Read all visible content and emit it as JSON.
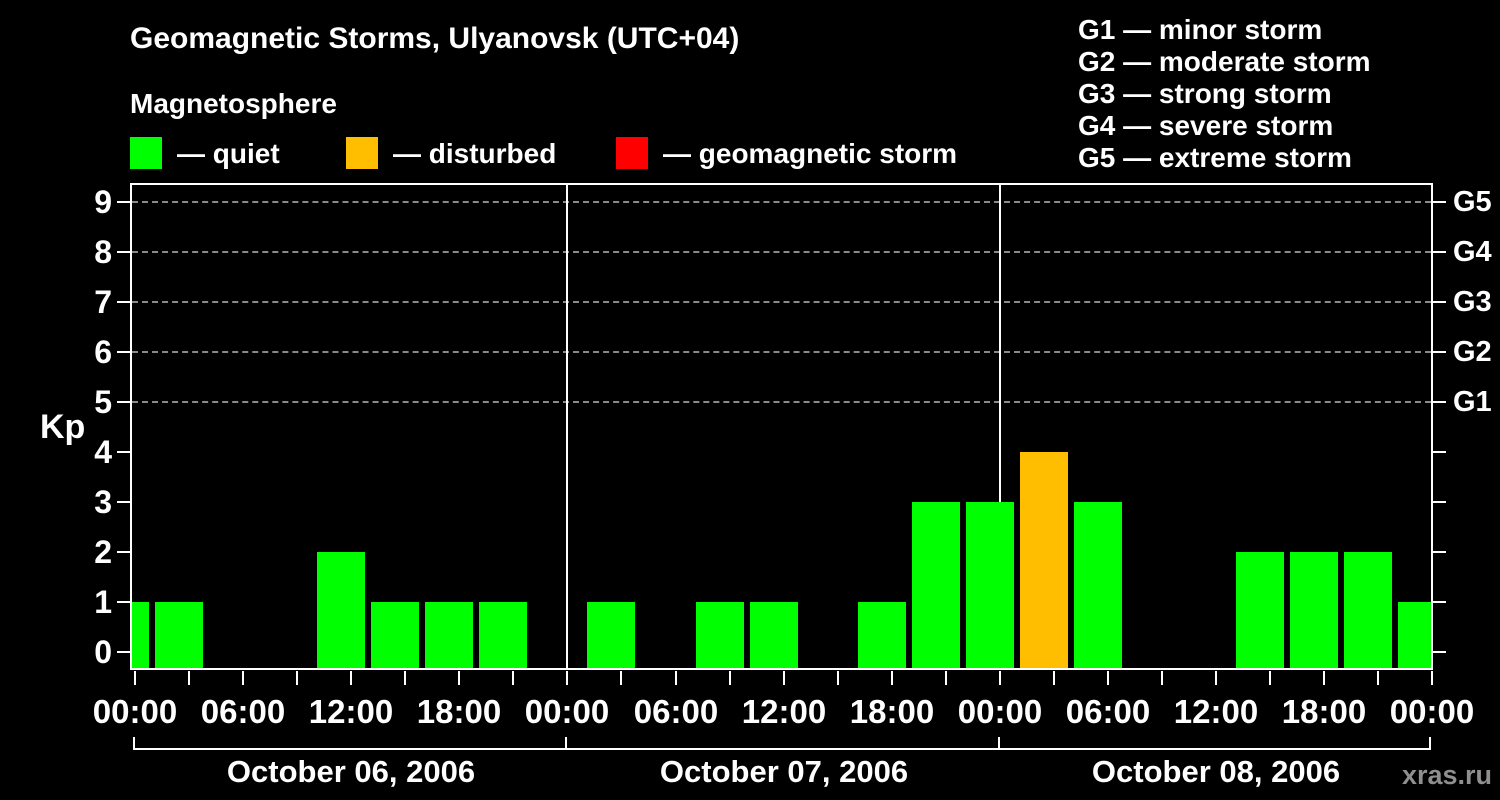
{
  "title": "Geomagnetic Storms, Ulyanovsk (UTC+04)",
  "subtitle": "Magnetosphere",
  "legend": {
    "items": [
      {
        "kind": "quiet",
        "label": "— quiet",
        "color": "#00ff00"
      },
      {
        "kind": "disturbed",
        "label": "— disturbed",
        "color": "#ffbe00"
      },
      {
        "kind": "storm",
        "label": "— geomagnetic storm",
        "color": "#ff0000"
      }
    ]
  },
  "g_legend": {
    "items": [
      "G1 — minor storm",
      "G2 — moderate storm",
      "G3 — strong storm",
      "G4 — severe storm",
      "G5 — extreme storm"
    ]
  },
  "watermark": "xras.ru",
  "chart_data": {
    "type": "bar",
    "title": "Geomagnetic Storms, Ulyanovsk (UTC+04)",
    "ylabel": "Kp",
    "ylim": [
      0,
      9
    ],
    "yticks": [
      0,
      1,
      2,
      3,
      4,
      5,
      6,
      7,
      8,
      9
    ],
    "gridlines_at_kp": [
      5,
      6,
      7,
      8,
      9
    ],
    "grid_style": "dashed",
    "right_axis": {
      "labels": [
        {
          "kp": 5,
          "text": "G1"
        },
        {
          "kp": 6,
          "text": "G2"
        },
        {
          "kp": 7,
          "text": "G3"
        },
        {
          "kp": 8,
          "text": "G4"
        },
        {
          "kp": 9,
          "text": "G5"
        }
      ]
    },
    "interval_hours": 3,
    "x_tick_labels": [
      "00:00",
      "06:00",
      "12:00",
      "18:00",
      "00:00",
      "06:00",
      "12:00",
      "18:00",
      "00:00",
      "06:00",
      "12:00",
      "18:00",
      "00:00"
    ],
    "days": [
      {
        "date": "October 06, 2006",
        "kp_values": [
          1,
          0,
          0,
          2,
          1,
          1,
          1,
          0
        ]
      },
      {
        "date": "October 07, 2006",
        "kp_values": [
          1,
          0,
          1,
          1,
          0,
          1,
          3,
          3
        ]
      },
      {
        "date": "October 08, 2006",
        "kp_values": [
          4,
          3,
          0,
          0,
          2,
          2,
          2,
          1
        ]
      }
    ],
    "leading_partial_bar_kp": 1,
    "colors": {
      "quiet": "#00ff00",
      "disturbed": "#ffbe00",
      "storm": "#ff0000",
      "axis": "#ffffff",
      "grid": "#8a8a8a"
    },
    "color_thresholds": {
      "quiet_max_kp": 3,
      "disturbed_max_kp": 4
    }
  }
}
